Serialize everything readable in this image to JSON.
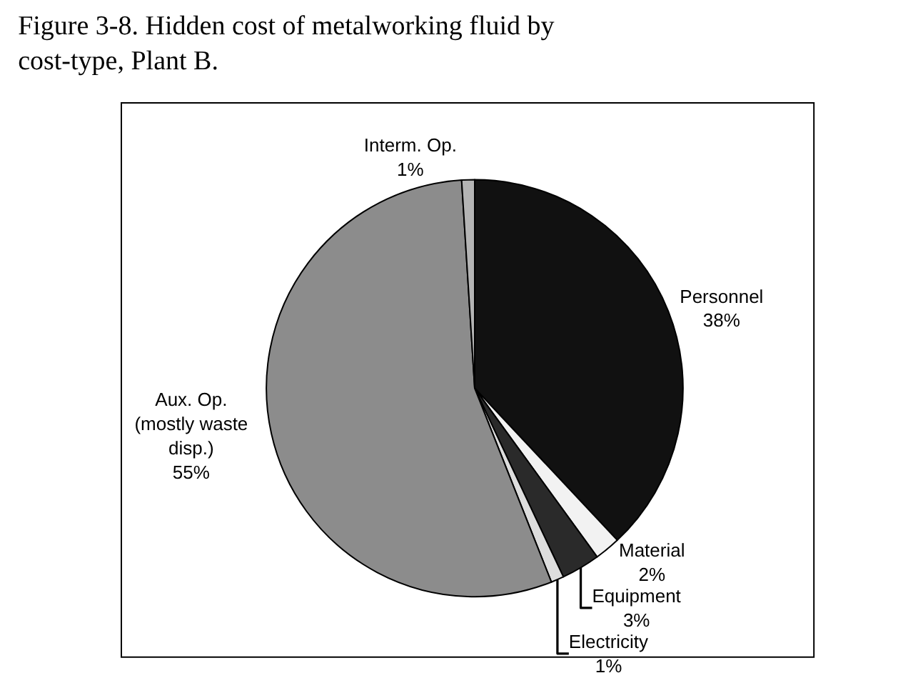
{
  "chart_data": {
    "type": "pie",
    "title": "Figure 3-8. Hidden cost of metalworking fluid by\ncost-type, Plant B.",
    "categories": [
      "Personnel",
      "Material",
      "Equipment",
      "Electricity",
      "Aux. Op.\n(mostly waste\ndisp.)",
      "Interm. Op."
    ],
    "values": [
      38,
      2,
      3,
      1,
      55,
      1
    ],
    "value_labels": [
      "38%",
      "2%",
      "3%",
      "1%",
      "55%",
      "1%"
    ],
    "colors": [
      "#111111",
      "#f2f2f2",
      "#2a2a2a",
      "#dddddd",
      "#8c8c8c",
      "#b4b4b4"
    ],
    "legend": false
  }
}
